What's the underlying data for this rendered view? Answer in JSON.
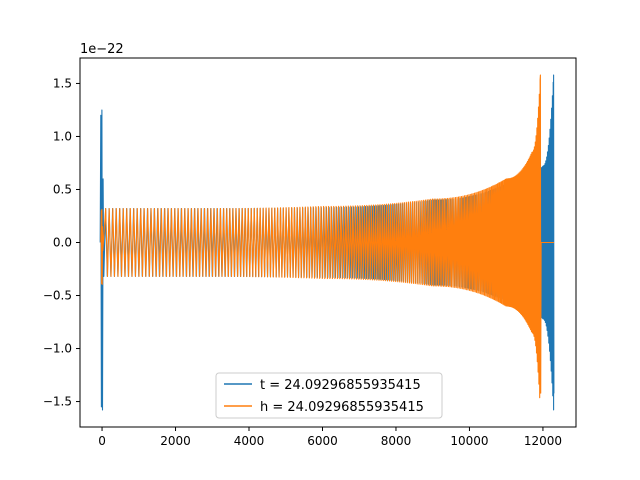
{
  "chart_data": {
    "type": "line",
    "scale_label": "1e−22",
    "xlim": [
      -600,
      12900
    ],
    "ylim": [
      -1.74,
      1.74
    ],
    "xticks": [
      {
        "v": 0,
        "label": "0"
      },
      {
        "v": 2000,
        "label": "2000"
      },
      {
        "v": 4000,
        "label": "4000"
      },
      {
        "v": 6000,
        "label": "6000"
      },
      {
        "v": 8000,
        "label": "8000"
      },
      {
        "v": 10000,
        "label": "10000"
      },
      {
        "v": 12000,
        "label": "12000"
      }
    ],
    "yticks": [
      {
        "v": -1.5,
        "label": "−1.5"
      },
      {
        "v": -1.0,
        "label": "−1.0"
      },
      {
        "v": -0.5,
        "label": "−0.5"
      },
      {
        "v": 0.0,
        "label": "0.0"
      },
      {
        "v": 0.5,
        "label": "0.5"
      },
      {
        "v": 1.0,
        "label": "1.0"
      },
      {
        "v": 1.5,
        "label": "1.5"
      }
    ],
    "series": [
      {
        "name": "t = 24.09296855935415",
        "color": "#1f77b4",
        "burst_start": [
          -50,
          60
        ],
        "chirp": [
          [
            0,
            0.32
          ],
          [
            3000,
            0.32
          ],
          [
            6000,
            0.33
          ],
          [
            9000,
            0.4
          ],
          [
            11000,
            0.55
          ],
          [
            12000,
            0.72
          ],
          [
            12290,
            1.58
          ]
        ],
        "peak_x": 12290,
        "tail": [
          12290,
          12295
        ]
      },
      {
        "name": "h = 24.09296855935415",
        "color": "#ff7f0e",
        "burst_start": [
          -30,
          30
        ],
        "chirp": [
          [
            100,
            0.32
          ],
          [
            3000,
            0.32
          ],
          [
            6000,
            0.34
          ],
          [
            9000,
            0.41
          ],
          [
            11000,
            0.6
          ],
          [
            11700,
            0.85
          ],
          [
            11930,
            1.58
          ]
        ],
        "peak_x": 11930,
        "tail": [
          11950,
          12300
        ]
      }
    ],
    "legend_position": "lower center"
  }
}
